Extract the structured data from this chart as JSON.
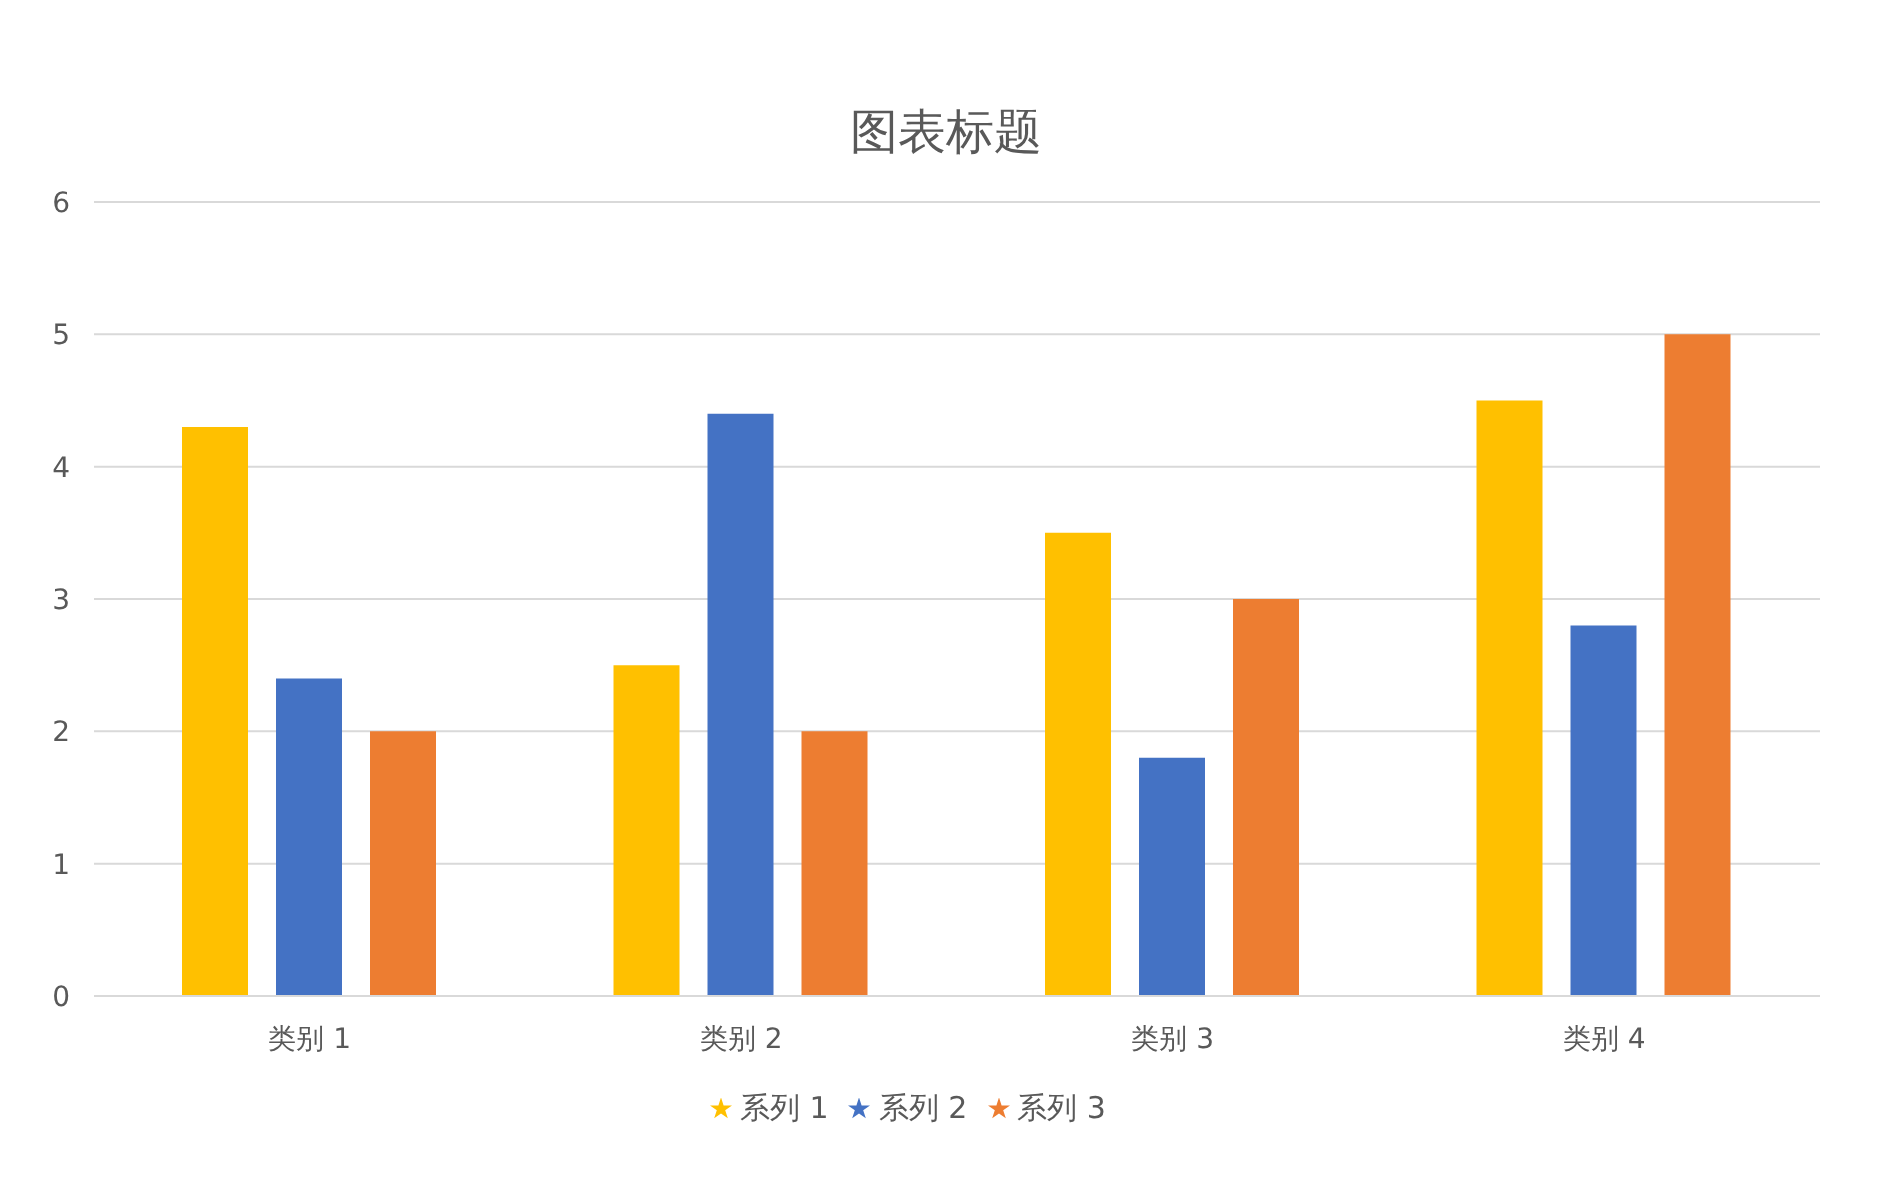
{
  "chart_data": {
    "type": "bar",
    "title": "图表标题",
    "categories": [
      "类别 1",
      "类别 2",
      "类别 3",
      "类别 4"
    ],
    "series": [
      {
        "name": "系列 1",
        "color": "#ffc000",
        "values": [
          4.3,
          2.5,
          3.5,
          4.5
        ]
      },
      {
        "name": "系列 2",
        "color": "#4472c4",
        "values": [
          2.4,
          4.4,
          1.8,
          2.8
        ]
      },
      {
        "name": "系列 3",
        "color": "#ed7d31",
        "values": [
          2,
          2,
          3,
          5
        ]
      }
    ],
    "ylim": [
      0,
      6
    ],
    "yticks": [
      0,
      1,
      2,
      3,
      4,
      5,
      6
    ],
    "grid": "y",
    "legend": "bottom",
    "marker": "star"
  }
}
